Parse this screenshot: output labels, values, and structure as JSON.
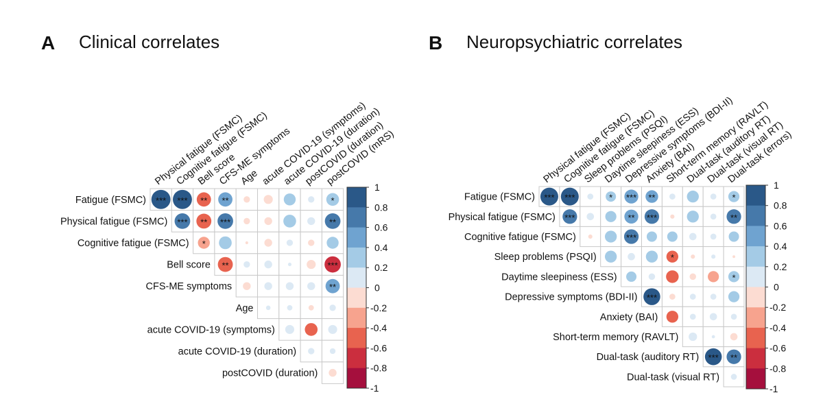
{
  "chart_data": [
    {
      "type": "heatmap",
      "panel_letter": "A",
      "title": "Clinical correlates",
      "rows": [
        "Fatigue (FSMC)",
        "Physical fatigue (FSMC)",
        "Cognitive fatigue (FSMC)",
        "Bell score",
        "CFS-ME symptoms",
        "Age",
        "acute COVID-19 (symptoms)",
        "acute COVID-19 (duration)",
        "postCOVID (duration)"
      ],
      "columns": [
        "Physical fatigue (FSMC)",
        "Cognitive fatigue (FSMC)",
        "Bell score",
        "CFS-ME symptoms",
        "Age",
        "acute COVID-19 (symptoms)",
        "acute COVID-19 (duration)",
        "postCOVID (duration)",
        "postCOVID (mRS)"
      ],
      "values": [
        [
          0.9,
          0.9,
          -0.5,
          0.5,
          -0.1,
          -0.2,
          0.35,
          0.1,
          0.4
        ],
        [
          null,
          0.6,
          -0.55,
          0.6,
          -0.1,
          -0.15,
          0.4,
          0.15,
          0.6
        ],
        [
          null,
          null,
          -0.35,
          0.4,
          -0.02,
          -0.15,
          0.1,
          -0.1,
          0.35
        ],
        [
          null,
          null,
          null,
          -0.55,
          0.1,
          0.15,
          0.03,
          -0.2,
          -0.65
        ],
        [
          null,
          null,
          null,
          null,
          -0.15,
          0.15,
          0.15,
          0.15,
          0.5
        ],
        [
          null,
          null,
          null,
          null,
          null,
          0.05,
          0.07,
          -0.07,
          0.1
        ],
        [
          null,
          null,
          null,
          null,
          null,
          null,
          0.2,
          -0.4,
          0.2
        ],
        [
          null,
          null,
          null,
          null,
          null,
          null,
          null,
          0.1,
          0.08
        ],
        [
          null,
          null,
          null,
          null,
          null,
          null,
          null,
          null,
          -0.15
        ]
      ],
      "significance": [
        [
          "***",
          "***",
          "**",
          "**",
          "",
          "",
          "",
          "",
          "*"
        ],
        [
          "",
          "***",
          "**",
          "***",
          "",
          "",
          "",
          "",
          "**"
        ],
        [
          "",
          "",
          "*",
          "",
          "",
          "",
          "",
          "",
          ""
        ],
        [
          "",
          "",
          "",
          "**",
          "",
          "",
          "",
          "",
          "***"
        ],
        [
          "",
          "",
          "",
          "",
          "",
          "",
          "",
          "",
          "**"
        ],
        [
          "",
          "",
          "",
          "",
          "",
          "",
          "",
          "",
          ""
        ],
        [
          "",
          "",
          "",
          "",
          "",
          "",
          "",
          "",
          ""
        ],
        [
          "",
          "",
          "",
          "",
          "",
          "",
          "",
          "",
          ""
        ],
        [
          "",
          "",
          "",
          "",
          "",
          "",
          "",
          "",
          ""
        ]
      ],
      "colorbar_ticks": [
        "1",
        "0.8",
        "0.6",
        "0.4",
        "0.2",
        "0",
        "-0.2",
        "-0.4",
        "-0.6",
        "-0.8",
        "-1"
      ],
      "range": [
        -1,
        1
      ]
    },
    {
      "type": "heatmap",
      "panel_letter": "B",
      "title": "Neuropsychiatric correlates",
      "rows": [
        "Fatigue (FSMC)",
        "Physical fatigue (FSMC)",
        "Cognitive fatigue (FSMC)",
        "Sleep problems (PSQI)",
        "Daytime sleepiness (ESS)",
        "Depressive symptoms (BDI-II)",
        "Anxiety (BAI)",
        "Short-term memory (RAVLT)",
        "Dual-task (auditory RT)",
        "Dual-task (visual RT)"
      ],
      "columns": [
        "Physical fatigue (FSMC)",
        "Cognitive fatigue (FSMC)",
        "Sleep problems (PSQI)",
        "Daytime sleepiness (ESS)",
        "Depressive symptoms (BDI-II)",
        "Anxiety (BAI)",
        "Short-term memory (RAVLT)",
        "Dual-task (auditory RT)",
        "Dual-task (visual RT)",
        "Dual-task (errors)"
      ],
      "values": [
        [
          0.9,
          0.9,
          0.1,
          0.3,
          0.55,
          0.45,
          0.1,
          0.4,
          0.1,
          0.35
        ],
        [
          null,
          0.6,
          0.15,
          0.35,
          0.55,
          0.6,
          -0.05,
          0.4,
          0.1,
          0.6
        ],
        [
          null,
          null,
          -0.05,
          0.4,
          0.6,
          0.3,
          0.3,
          0.15,
          0.1,
          0.3
        ],
        [
          null,
          null,
          null,
          0.4,
          0.15,
          0.4,
          -0.4,
          -0.05,
          0.05,
          -0.02
        ],
        [
          null,
          null,
          null,
          null,
          0.3,
          0.12,
          -0.45,
          -0.12,
          -0.35,
          0.35
        ],
        [
          null,
          null,
          null,
          null,
          null,
          0.8,
          -0.1,
          0.1,
          0.1,
          0.35
        ],
        [
          null,
          null,
          null,
          null,
          null,
          null,
          -0.4,
          0.1,
          0.15,
          0.1
        ],
        [
          null,
          null,
          null,
          null,
          null,
          null,
          null,
          0.2,
          0.03,
          -0.15
        ],
        [
          null,
          null,
          null,
          null,
          null,
          null,
          null,
          null,
          0.8,
          0.6
        ],
        [
          null,
          null,
          null,
          null,
          null,
          null,
          null,
          null,
          null,
          0.1
        ]
      ],
      "significance": [
        [
          "***",
          "***",
          "",
          "*",
          "***",
          "**",
          "",
          "",
          "",
          "*"
        ],
        [
          "",
          "***",
          "",
          "",
          "**",
          "***",
          "",
          "",
          "",
          "**"
        ],
        [
          "",
          "",
          "",
          "",
          "***",
          "",
          "",
          "",
          "",
          ""
        ],
        [
          "",
          "",
          "",
          "",
          "",
          "",
          "*",
          "",
          "",
          ""
        ],
        [
          "",
          "",
          "",
          "",
          "",
          "",
          "",
          "",
          "",
          "*"
        ],
        [
          "",
          "",
          "",
          "",
          "",
          "***",
          "",
          "",
          "",
          ""
        ],
        [
          "",
          "",
          "",
          "",
          "",
          "",
          "",
          "",
          "",
          ""
        ],
        [
          "",
          "",
          "",
          "",
          "",
          "",
          "",
          "",
          "",
          ""
        ],
        [
          "",
          "",
          "",
          "",
          "",
          "",
          "",
          "",
          "***",
          "**"
        ],
        [
          "",
          "",
          "",
          "",
          "",
          "",
          "",
          "",
          "",
          ""
        ]
      ],
      "colorbar_ticks": [
        "1",
        "0.8",
        "0.6",
        "0.4",
        "0.2",
        "0",
        "-0.2",
        "-0.4",
        "-0.6",
        "-0.8",
        "-1"
      ],
      "range": [
        -1,
        1
      ]
    }
  ],
  "palette": [
    "#A50F3D",
    "#CB2E3E",
    "#E8634F",
    "#F7A38E",
    "#FCDCD2",
    "#DCE9F4",
    "#A4CBE6",
    "#6FA3D0",
    "#4679AA",
    "#2A5888"
  ]
}
